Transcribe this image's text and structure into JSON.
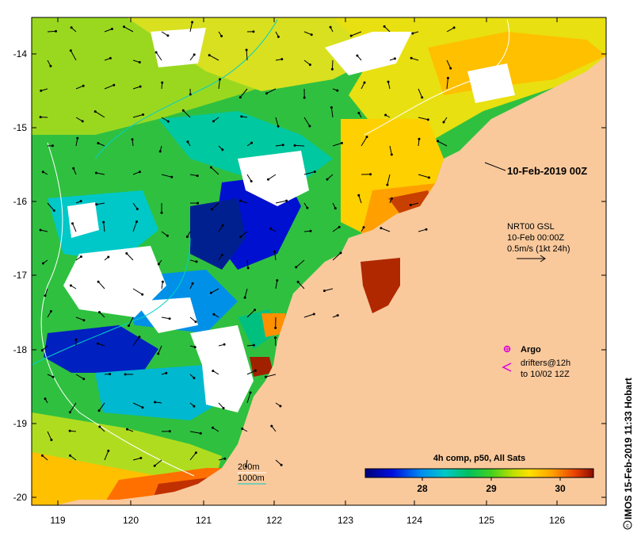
{
  "map": {
    "lon_ticks": [
      "119",
      "120",
      "121",
      "122",
      "123",
      "124",
      "125",
      "126"
    ],
    "lat_ticks": [
      "-14",
      "-15",
      "-16",
      "-17",
      "-18",
      "-19",
      "-20"
    ],
    "date_label": "10-Feb-2019 00Z",
    "vector_info": {
      "line1": "NRT00 GSL",
      "line2": "10-Feb 00:00Z",
      "line3": "0.5m/s (1kt 24h)"
    },
    "legend": {
      "argo_label": "Argo",
      "drifters_line1": "drifters@12h",
      "drifters_line2": "to 10/02 12Z"
    },
    "bathymetry": {
      "label_200": "200m",
      "label_1000": "1000m"
    },
    "colorbar": {
      "title": "4h comp, p50, All Sats",
      "ticks": [
        "28",
        "29",
        "30"
      ]
    },
    "credit": "IMOS 15-Feb-2019 11:33 Hobart",
    "colors": {
      "land": "#f9c99c",
      "cloud": "#ffffff",
      "argo": "#d800d8",
      "bathy_200": "#ffffff",
      "bathy_1000": "#00d0c8"
    }
  }
}
